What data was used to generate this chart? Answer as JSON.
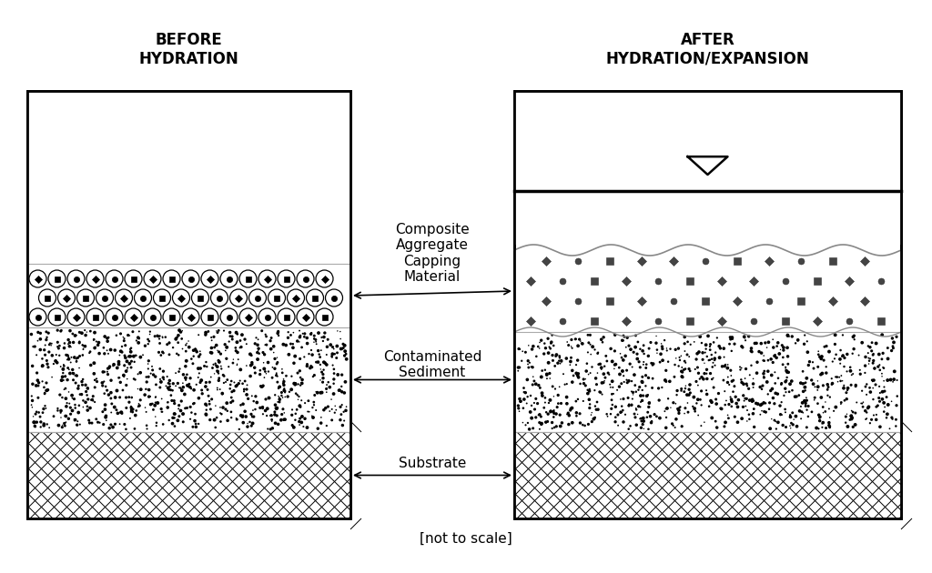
{
  "title_left": "BEFORE\nHYDRATION",
  "title_right": "AFTER\nHYDRATION/EXPANSION",
  "label_composite": "Composite\nAggregate\nCapping\nMaterial",
  "label_contaminated": "Contaminated\nSediment",
  "label_substrate": "Substrate",
  "label_scale": "[not to scale]",
  "bg_color": "#ffffff",
  "title_fontsize": 12,
  "label_fontsize": 11,
  "scale_fontsize": 11
}
